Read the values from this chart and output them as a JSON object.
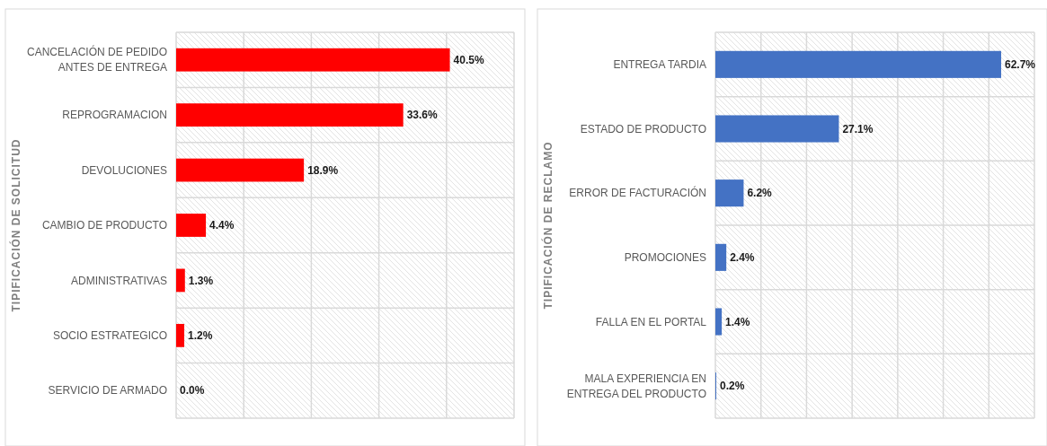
{
  "chart_data": [
    {
      "type": "bar",
      "orientation": "horizontal",
      "ylabel": "TIPIFICACIÓN DE SOLICITUD",
      "categories": [
        "CANCELACIÓN DE PEDIDO ANTES DE ENTREGA",
        "REPROGRAMACION",
        "DEVOLUCIONES",
        "CAMBIO DE PRODUCTO",
        "ADMINISTRATIVAS",
        "SOCIO ESTRATEGICO",
        "SERVICIO DE ARMADO"
      ],
      "values": [
        40.5,
        33.6,
        18.9,
        4.4,
        1.3,
        1.2,
        0.0
      ],
      "value_labels": [
        "40.5%",
        "33.6%",
        "18.9%",
        "4.4%",
        "1.3%",
        "1.2%",
        "0.0%"
      ],
      "color": "#ff0000",
      "xlim": [
        0,
        50
      ],
      "xticks": [
        {
          "value": 0,
          "label": null
        },
        {
          "value": 10,
          "label": null
        },
        {
          "value": 20,
          "label": null
        },
        {
          "value": 30,
          "label": null
        },
        {
          "value": 40,
          "label": null
        },
        {
          "value": 50,
          "label": null
        }
      ],
      "tick_labels": "y",
      "grid": true
    },
    {
      "type": "bar",
      "orientation": "horizontal",
      "ylabel": "TIPIFICACIÓN DE RECLAMO",
      "categories": [
        "ENTREGA TARDIA",
        "ESTADO DE PRODUCTO",
        "ERROR DE FACTURACIÓN",
        "PROMOCIONES",
        "FALLA EN EL PORTAL",
        "MALA EXPERIENCIA EN ENTREGA DEL PRODUCTO"
      ],
      "values": [
        62.7,
        27.1,
        6.2,
        2.4,
        1.4,
        0.2
      ],
      "value_labels": [
        "62.7%",
        "27.1%",
        "6.2%",
        "2.4%",
        "1.4%",
        "0.2%"
      ],
      "color": "#4472c4",
      "xlim": [
        0,
        70
      ],
      "xticks": [
        {
          "value": 0,
          "label": null
        },
        {
          "value": 10,
          "label": null
        },
        {
          "value": 20,
          "label": null
        },
        {
          "value": 30,
          "label": null
        },
        {
          "value": 40,
          "label": null
        },
        {
          "value": 50,
          "label": null
        },
        {
          "value": 60,
          "label": null
        },
        {
          "value": 70,
          "label": null
        }
      ],
      "tick_labels": "y",
      "grid": true
    }
  ]
}
